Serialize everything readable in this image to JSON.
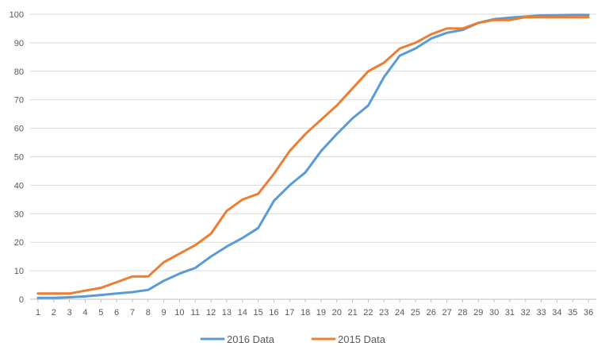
{
  "chart_data": {
    "type": "line",
    "x": [
      1,
      2,
      3,
      4,
      5,
      6,
      7,
      8,
      9,
      10,
      11,
      12,
      13,
      14,
      15,
      16,
      17,
      18,
      19,
      20,
      21,
      22,
      23,
      24,
      25,
      26,
      27,
      28,
      29,
      30,
      31,
      32,
      33,
      34,
      35,
      36
    ],
    "x_tick_labels": [
      "1",
      "2",
      "3",
      "4",
      "5",
      "6",
      "7",
      "8",
      "9",
      "10",
      "11",
      "12",
      "13",
      "14",
      "15",
      "16",
      "17",
      "18",
      "19",
      "20",
      "21",
      "22",
      "23",
      "24",
      "25",
      "26",
      "27",
      "28",
      "29",
      "30",
      "31",
      "32",
      "33",
      "34",
      "35",
      "36"
    ],
    "ylim": [
      0,
      100
    ],
    "y_ticks": [
      0,
      10,
      20,
      30,
      40,
      50,
      60,
      70,
      80,
      90,
      100
    ],
    "y_tick_labels": [
      "0",
      "10",
      "20",
      "30",
      "40",
      "50",
      "60",
      "70",
      "80",
      "90",
      "100"
    ],
    "grid": true,
    "legend_position": "bottom",
    "series": [
      {
        "name": "2016 Data",
        "color": "#5b9bd5",
        "values": [
          0.5,
          0.5,
          0.7,
          1,
          1.5,
          2,
          2.5,
          3.3,
          6.5,
          9,
          11,
          15,
          18.5,
          21.5,
          25,
          34.5,
          40,
          44.5,
          52,
          58,
          63.5,
          68,
          78,
          85.5,
          88,
          91.5,
          93.5,
          94.5,
          97,
          98.3,
          98.8,
          99.2,
          99.6,
          99.7,
          99.8,
          99.8
        ]
      },
      {
        "name": "2015 Data",
        "color": "#ed7d31",
        "values": [
          2,
          2,
          2,
          3,
          4,
          6,
          8,
          8,
          13,
          16,
          19,
          23,
          31,
          35,
          37,
          44,
          52,
          58,
          63,
          68,
          74,
          80,
          83,
          88,
          90,
          93,
          95,
          95,
          97,
          98,
          98,
          99,
          99,
          99,
          99,
          99
        ]
      }
    ]
  }
}
